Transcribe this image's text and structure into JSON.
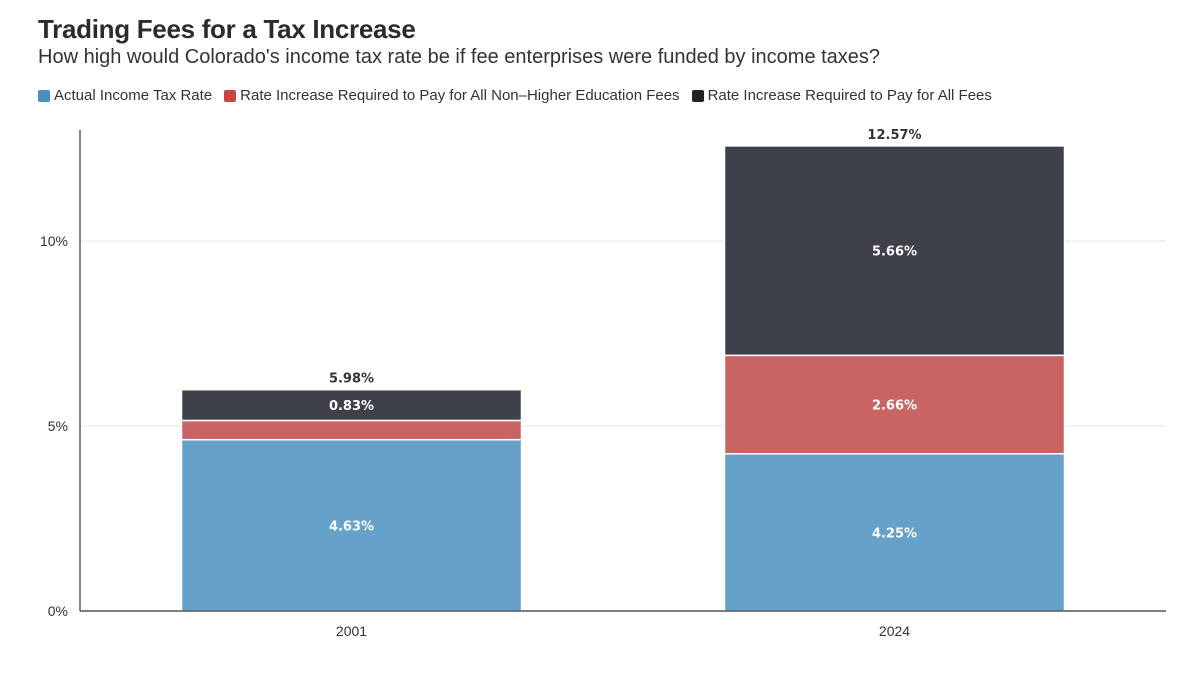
{
  "title": "Trading Fees for a Tax Increase",
  "subtitle": "How high would Colorado's income tax rate be if fee enterprises were funded by income taxes?",
  "chart_data": {
    "type": "bar",
    "stacked": true,
    "categories": [
      "2001",
      "2024"
    ],
    "series": [
      {
        "name": "Actual Income Tax Rate",
        "color": "#66a1c9",
        "values": [
          4.63,
          4.25
        ],
        "labels": [
          "4.63%",
          "4.25%"
        ]
      },
      {
        "name": "Rate Increase Required to Pay for All Non–Higher Education Fees",
        "color": "#c96464",
        "values": [
          0.52,
          2.66
        ],
        "labels": [
          "",
          "2.66%"
        ]
      },
      {
        "name": "Rate Increase Required to Pay for All Fees",
        "color": "#3e4149",
        "values": [
          0.83,
          5.66
        ],
        "labels": [
          "0.83%",
          "5.66%"
        ]
      }
    ],
    "totals": [
      "5.98%",
      "12.57%"
    ],
    "ylim": [
      0,
      13
    ],
    "yticks": [
      0,
      5,
      10
    ],
    "ytick_labels": [
      "0%",
      "5%",
      "10%"
    ],
    "xlabel": "",
    "ylabel": "",
    "legend_position": "top-left"
  }
}
